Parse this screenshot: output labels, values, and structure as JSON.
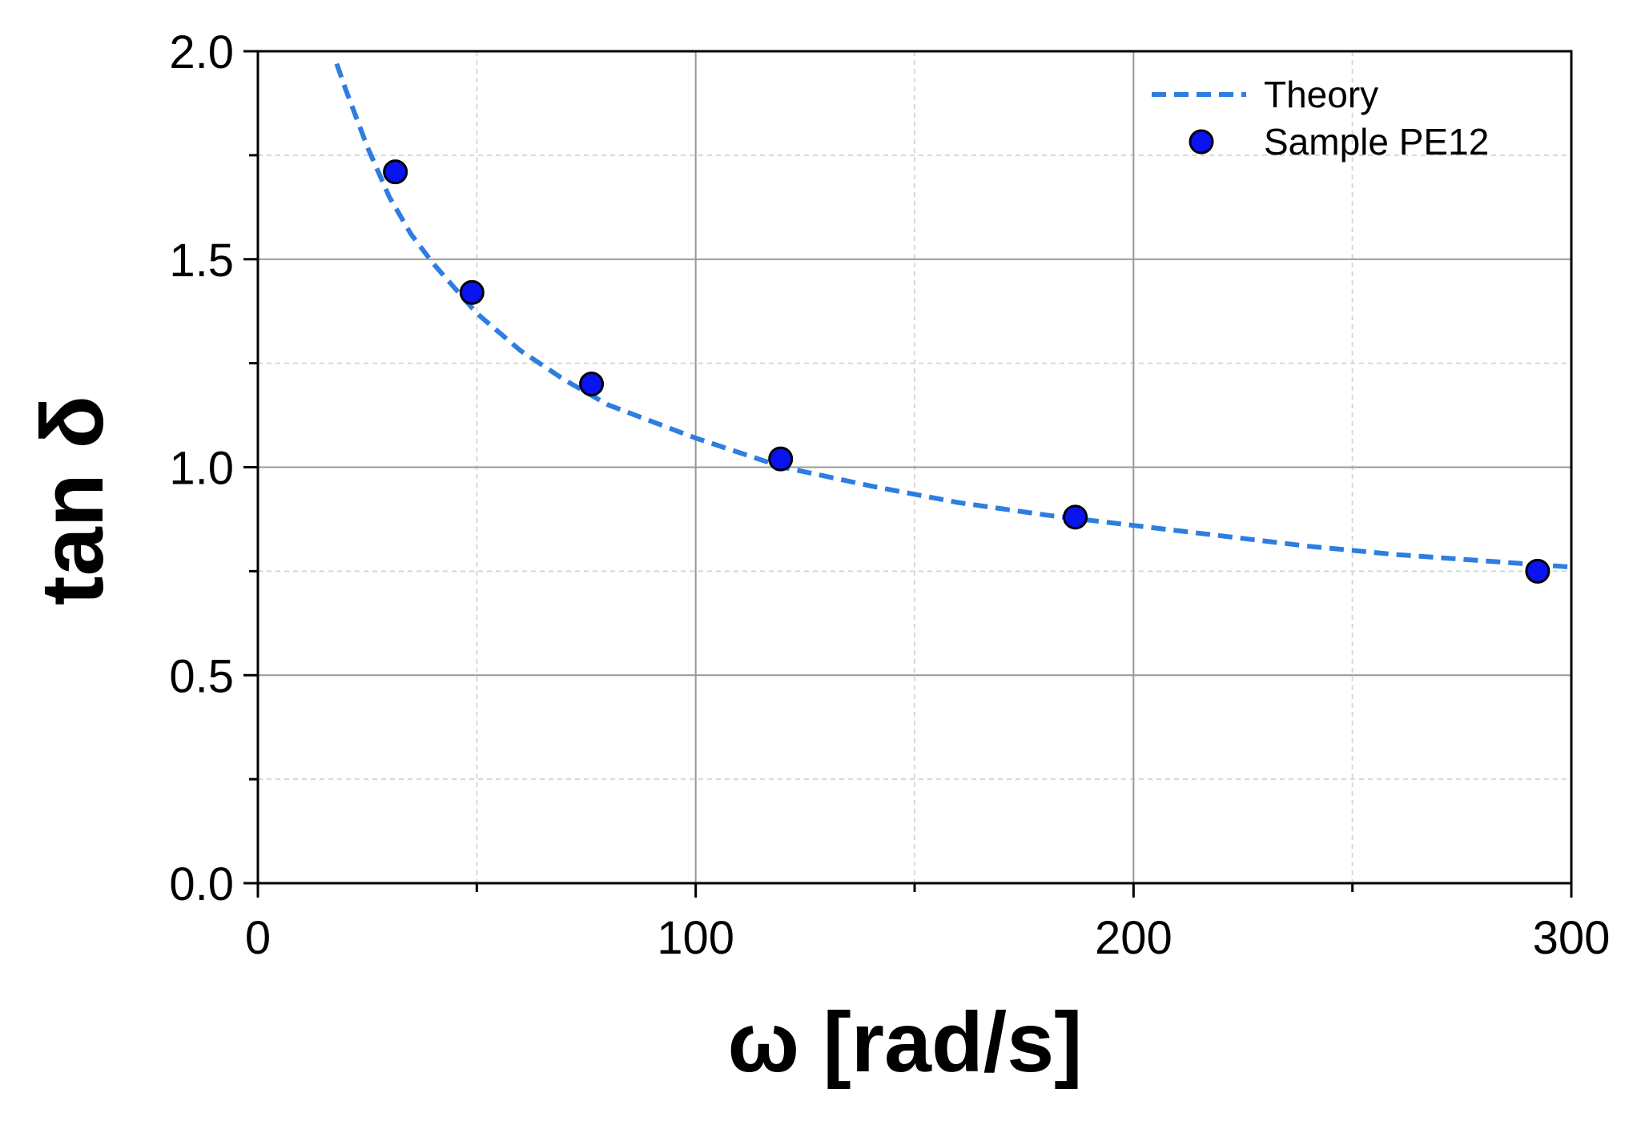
{
  "chart_data": {
    "type": "scatter",
    "xlabel": "ω [rad/s]",
    "ylabel": "tan δ",
    "xlim": [
      0,
      300
    ],
    "ylim": [
      0.0,
      2.0
    ],
    "x_ticks": [
      "0",
      "100",
      "200",
      "300"
    ],
    "y_ticks": [
      "0.0",
      "0.5",
      "1.0",
      "1.5",
      "2.0"
    ],
    "grid": true,
    "legend_position": "top-right",
    "series": [
      {
        "name": "Theory",
        "kind": "line",
        "style": "dashed",
        "color": "#2e7de0",
        "x": [
          18,
          20,
          25,
          30,
          35,
          40,
          50,
          60,
          70,
          80,
          90,
          100,
          120,
          140,
          160,
          180,
          200,
          220,
          240,
          260,
          280,
          300
        ],
        "y": [
          1.97,
          1.91,
          1.77,
          1.65,
          1.56,
          1.49,
          1.37,
          1.28,
          1.21,
          1.15,
          1.11,
          1.07,
          1.0,
          0.955,
          0.915,
          0.885,
          0.86,
          0.835,
          0.81,
          0.79,
          0.775,
          0.76
        ]
      },
      {
        "name": "Sample PE12",
        "kind": "scatter",
        "color": "#0a14f0",
        "x": [
          31.4,
          48.9,
          76.2,
          119.4,
          186.7,
          292.3
        ],
        "y": [
          1.71,
          1.42,
          1.2,
          1.02,
          0.88,
          0.75
        ]
      }
    ]
  }
}
